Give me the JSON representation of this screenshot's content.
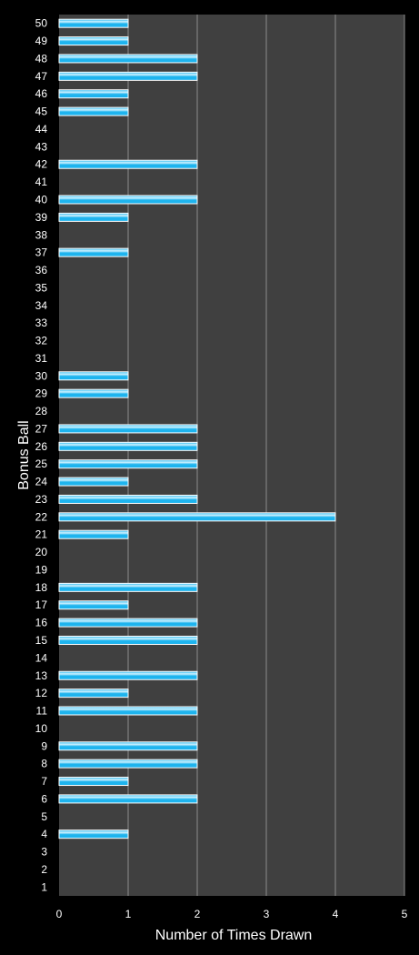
{
  "chart_data": {
    "type": "bar",
    "orientation": "horizontal",
    "xlabel": "Number of Times Drawn",
    "ylabel": "Bonus Ball",
    "xlim": [
      0,
      5
    ],
    "xticks": [
      0,
      1,
      2,
      3,
      4,
      5
    ],
    "grid": true,
    "categories": [
      1,
      2,
      3,
      4,
      5,
      6,
      7,
      8,
      9,
      10,
      11,
      12,
      13,
      14,
      15,
      16,
      17,
      18,
      19,
      20,
      21,
      22,
      23,
      24,
      25,
      26,
      27,
      28,
      29,
      30,
      31,
      32,
      33,
      34,
      35,
      36,
      37,
      38,
      39,
      40,
      41,
      42,
      43,
      44,
      45,
      46,
      47,
      48,
      49,
      50
    ],
    "values": [
      0,
      0,
      0,
      1,
      0,
      2,
      1,
      2,
      2,
      0,
      2,
      1,
      2,
      0,
      2,
      2,
      1,
      2,
      0,
      0,
      1,
      4,
      2,
      1,
      2,
      2,
      2,
      0,
      1,
      1,
      0,
      0,
      0,
      0,
      0,
      0,
      1,
      0,
      1,
      2,
      0,
      2,
      0,
      0,
      1,
      1,
      2,
      2,
      1,
      1
    ],
    "colors": {
      "background": "#000000",
      "plot_area": "#404040",
      "gridline": "#8c8c8c",
      "bar": "#1eb4ee",
      "bar_highlight": "#d2f3ff",
      "bar_border": "#ffffff",
      "text": "#ffffff"
    }
  }
}
